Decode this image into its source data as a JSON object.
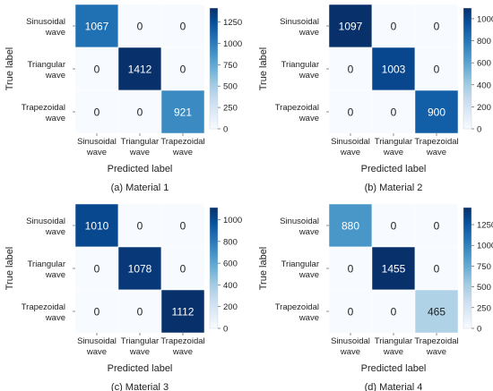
{
  "colors": {
    "cmap": [
      "#f7fbff",
      "#deebf7",
      "#c6dbef",
      "#9ecae1",
      "#6baed6",
      "#4292c6",
      "#2171b5",
      "#08519c",
      "#08306b"
    ],
    "light_text": "#ffffff",
    "dark_text": "#222222",
    "cell_border": "#ffffff"
  },
  "chart_data": [
    {
      "type": "heatmap",
      "caption": "(a) Material 1",
      "xlabel": "Predicted label",
      "ylabel": "True label",
      "x_tick_labels": [
        [
          "Sinusoidal",
          "wave"
        ],
        [
          "Triangular",
          "wave"
        ],
        [
          "Trapezoidal",
          "wave"
        ]
      ],
      "y_tick_labels": [
        [
          "Sinusoidal",
          "wave"
        ],
        [
          "Triangular",
          "wave"
        ],
        [
          "Trapezoidal",
          "wave"
        ]
      ],
      "values": [
        [
          1067,
          0,
          0
        ],
        [
          0,
          1412,
          0
        ],
        [
          0,
          0,
          921
        ]
      ],
      "vmin": 0,
      "vmax": 1412,
      "colorbar_ticks": [
        0,
        250,
        500,
        750,
        1000,
        1250
      ]
    },
    {
      "type": "heatmap",
      "caption": "(b) Material 2",
      "xlabel": "Predicted label",
      "ylabel": "True label",
      "x_tick_labels": [
        [
          "Sinusoidal",
          "wave"
        ],
        [
          "Triangular",
          "wave"
        ],
        [
          "Trapezoidal",
          "wave"
        ]
      ],
      "y_tick_labels": [
        [
          "Sinusoidal",
          "wave"
        ],
        [
          "Triangular",
          "wave"
        ],
        [
          "Trapezoidal",
          "wave"
        ]
      ],
      "values": [
        [
          1097,
          0,
          0
        ],
        [
          0,
          1003,
          0
        ],
        [
          0,
          0,
          900
        ]
      ],
      "vmin": 0,
      "vmax": 1097,
      "colorbar_ticks": [
        0,
        200,
        400,
        600,
        800,
        1000
      ]
    },
    {
      "type": "heatmap",
      "caption": "(c) Material 3",
      "xlabel": "Predicted label",
      "ylabel": "True label",
      "x_tick_labels": [
        [
          "Sinusoidal",
          "wave"
        ],
        [
          "Triangular",
          "wave"
        ],
        [
          "Trapezoidal",
          "wave"
        ]
      ],
      "y_tick_labels": [
        [
          "Sinusoidal",
          "wave"
        ],
        [
          "Triangular",
          "wave"
        ],
        [
          "Trapezoidal",
          "wave"
        ]
      ],
      "values": [
        [
          1010,
          0,
          0
        ],
        [
          0,
          1078,
          0
        ],
        [
          0,
          0,
          1112
        ]
      ],
      "vmin": 0,
      "vmax": 1112,
      "colorbar_ticks": [
        0,
        200,
        400,
        600,
        800,
        1000
      ]
    },
    {
      "type": "heatmap",
      "caption": "(d) Material 4",
      "xlabel": "Predicted label",
      "ylabel": "True label",
      "x_tick_labels": [
        [
          "Sinusoidal",
          "wave"
        ],
        [
          "Triangular",
          "wave"
        ],
        [
          "Trapezoidal",
          "wave"
        ]
      ],
      "y_tick_labels": [
        [
          "Sinusoidal",
          "wave"
        ],
        [
          "Triangular",
          "wave"
        ],
        [
          "Trapezoidal",
          "wave"
        ]
      ],
      "values": [
        [
          880,
          0,
          0
        ],
        [
          0,
          1455,
          0
        ],
        [
          0,
          0,
          465
        ]
      ],
      "vmin": 0,
      "vmax": 1455,
      "colorbar_ticks": [
        0,
        250,
        500,
        750,
        1000,
        1250
      ]
    }
  ]
}
